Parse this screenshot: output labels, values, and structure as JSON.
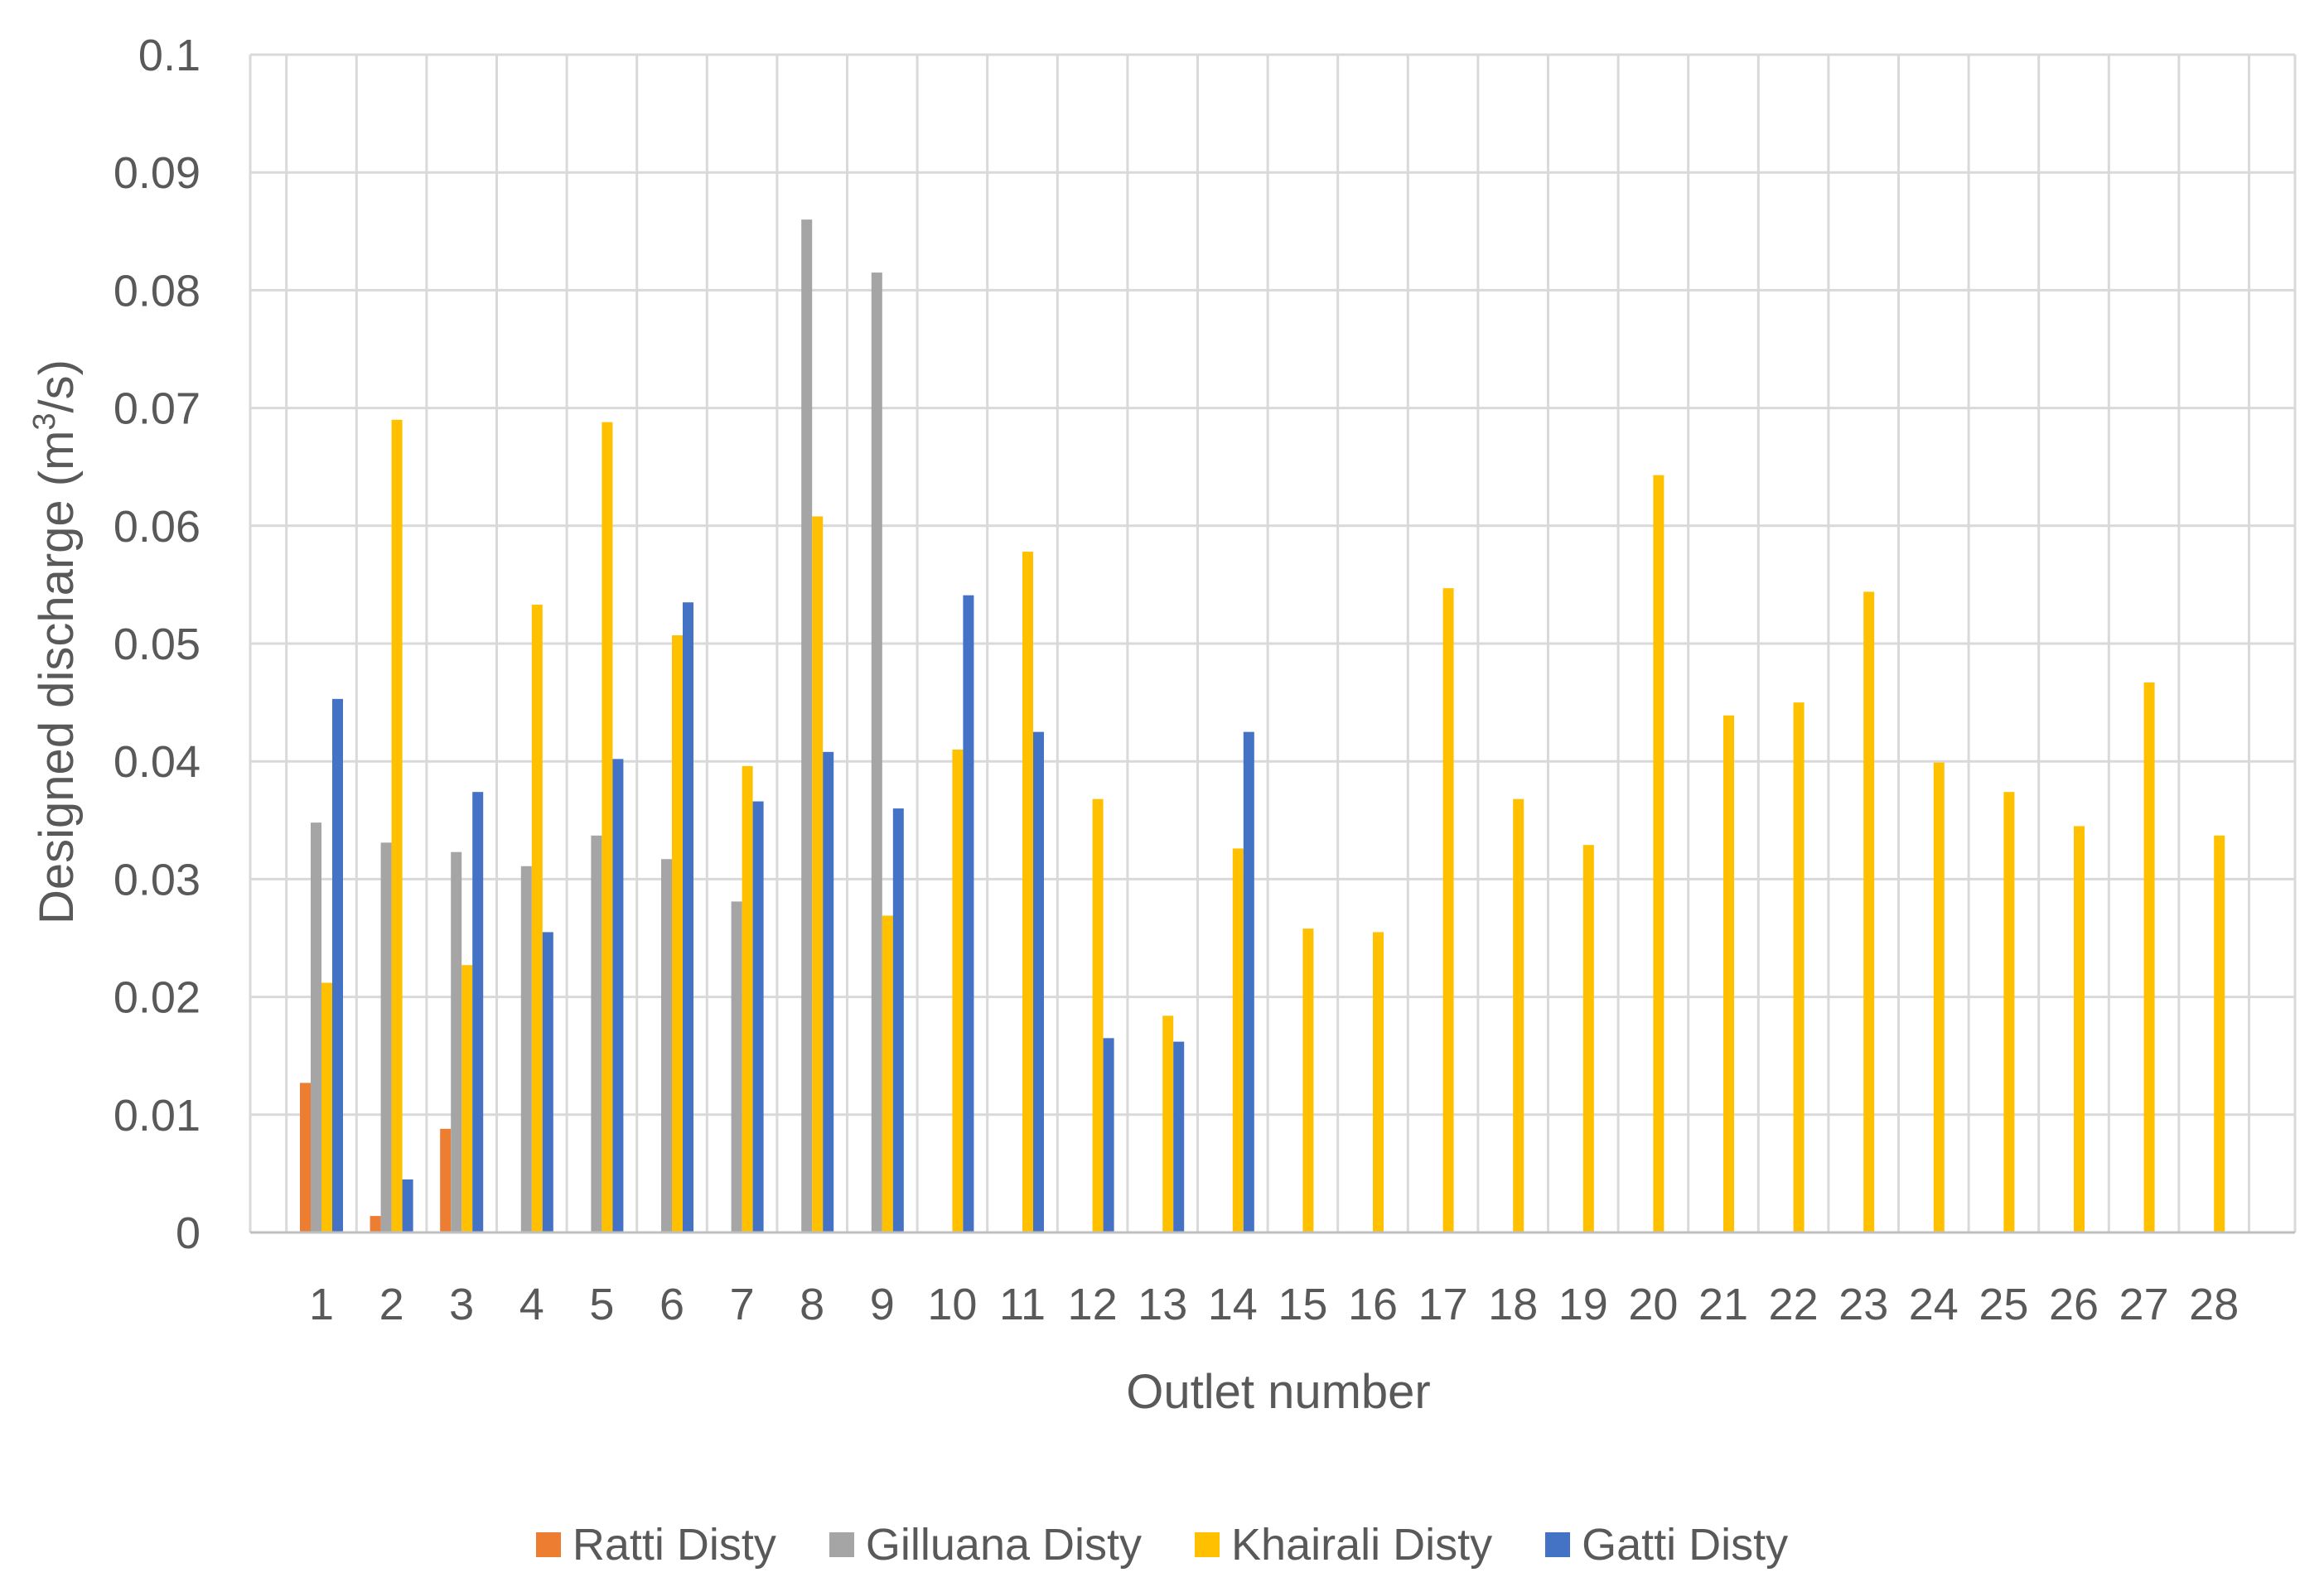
{
  "chart_data": {
    "type": "bar",
    "xlabel": "Outlet number",
    "ylabel_main": "Designed discharge (m",
    "ylabel_sup": "3",
    "ylabel_end": "/s)",
    "ylim": [
      0,
      0.1
    ],
    "yticks": [
      "0",
      "0.01",
      "0.02",
      "0.03",
      "0.04",
      "0.05",
      "0.06",
      "0.07",
      "0.08",
      "0.09",
      "0.1"
    ],
    "grid": true,
    "legend_position": "bottom",
    "categories": [
      "1",
      "2",
      "3",
      "4",
      "5",
      "6",
      "7",
      "8",
      "9",
      "10",
      "11",
      "12",
      "13",
      "14",
      "15",
      "16",
      "17",
      "18",
      "19",
      "20",
      "21",
      "22",
      "23",
      "24",
      "25",
      "26",
      "27",
      "28"
    ],
    "series": [
      {
        "name": "Ratti Disty",
        "color": "#ED7D31",
        "values": [
          0.0127,
          0.0014,
          0.0088,
          null,
          null,
          null,
          null,
          null,
          null,
          null,
          null,
          null,
          null,
          null,
          null,
          null,
          null,
          null,
          null,
          null,
          null,
          null,
          null,
          null,
          null,
          null,
          null,
          null
        ]
      },
      {
        "name": "Gilluana Disty",
        "color": "#A5A5A5",
        "values": [
          0.0348,
          0.0331,
          0.0323,
          0.0311,
          0.0337,
          0.0317,
          0.0281,
          0.086,
          0.0815,
          null,
          null,
          null,
          null,
          null,
          null,
          null,
          null,
          null,
          null,
          null,
          null,
          null,
          null,
          null,
          null,
          null,
          null,
          null
        ]
      },
      {
        "name": "Khairali Disty",
        "color": "#FFC000",
        "values": [
          0.0212,
          0.069,
          0.0227,
          0.0533,
          0.0688,
          0.0507,
          0.0396,
          0.0608,
          0.0269,
          0.041,
          0.0578,
          0.0368,
          0.0184,
          0.0326,
          0.0258,
          0.0255,
          0.0547,
          0.0368,
          0.0329,
          0.0643,
          0.0439,
          0.045,
          0.0544,
          0.0399,
          0.0374,
          0.0345,
          0.0467,
          0.0337
        ]
      },
      {
        "name": "Gatti Disty",
        "color": "#4472C4",
        "values": [
          0.0453,
          0.0045,
          0.0374,
          0.0255,
          0.0402,
          0.0535,
          0.0366,
          0.0408,
          0.036,
          0.0541,
          0.0425,
          0.0165,
          0.0162,
          0.0425,
          null,
          null,
          null,
          null,
          null,
          null,
          null,
          null,
          null,
          null,
          null,
          null,
          null,
          null
        ]
      }
    ]
  }
}
